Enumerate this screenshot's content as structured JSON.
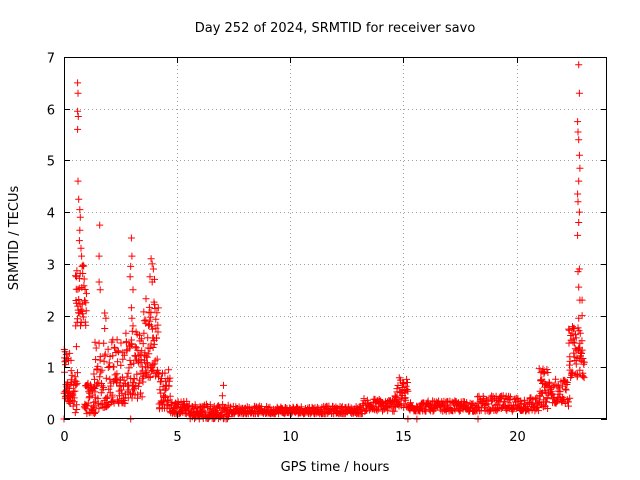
{
  "chart_data": {
    "type": "scatter",
    "title": "Day 252 of 2024, SRMTID for receiver savo",
    "xlabel": "GPS time / hours",
    "ylabel": "SRMTID / TECUs",
    "xlim": [
      0,
      24
    ],
    "ylim": [
      0,
      7
    ],
    "xticks": [
      0,
      5,
      10,
      15,
      20
    ],
    "yticks": [
      0,
      1,
      2,
      3,
      4,
      5,
      6,
      7
    ],
    "grid": true,
    "marker": "+",
    "color": "#ff0000",
    "series": [
      {
        "name": "SRMTID",
        "segments": [
          {
            "x0": 0.0,
            "x1": 0.35,
            "ymin": 0.3,
            "ymax": 1.35,
            "n": 40
          },
          {
            "x0": 0.35,
            "x1": 0.6,
            "ymin": 0.0,
            "ymax": 0.9,
            "n": 20
          },
          {
            "x0": 0.5,
            "x1": 1.0,
            "ymin": 1.8,
            "ymax": 3.0,
            "n": 40
          },
          {
            "x0": 0.9,
            "x1": 1.4,
            "ymin": 0.1,
            "ymax": 0.7,
            "n": 40
          },
          {
            "x0": 1.3,
            "x1": 2.0,
            "ymin": 0.2,
            "ymax": 1.5,
            "n": 50
          },
          {
            "x0": 2.0,
            "x1": 2.7,
            "ymin": 0.3,
            "ymax": 1.6,
            "n": 60
          },
          {
            "x0": 2.7,
            "x1": 3.5,
            "ymin": 0.4,
            "ymax": 1.7,
            "n": 70
          },
          {
            "x0": 3.5,
            "x1": 4.2,
            "ymin": 0.8,
            "ymax": 2.4,
            "n": 70
          },
          {
            "x0": 4.2,
            "x1": 4.7,
            "ymin": 0.2,
            "ymax": 1.0,
            "n": 40
          },
          {
            "x0": 4.7,
            "x1": 5.5,
            "ymin": 0.1,
            "ymax": 0.35,
            "n": 50
          },
          {
            "x0": 5.5,
            "x1": 7.3,
            "ymin": 0.0,
            "ymax": 0.3,
            "n": 110
          },
          {
            "x0": 7.3,
            "x1": 13.2,
            "ymin": 0.1,
            "ymax": 0.25,
            "n": 280
          },
          {
            "x0": 13.2,
            "x1": 14.6,
            "ymin": 0.15,
            "ymax": 0.4,
            "n": 70
          },
          {
            "x0": 14.6,
            "x1": 15.2,
            "ymin": 0.2,
            "ymax": 0.8,
            "n": 45
          },
          {
            "x0": 15.2,
            "x1": 18.2,
            "ymin": 0.15,
            "ymax": 0.35,
            "n": 150
          },
          {
            "x0": 18.2,
            "x1": 21.0,
            "ymin": 0.15,
            "ymax": 0.45,
            "n": 140
          },
          {
            "x0": 21.0,
            "x1": 21.4,
            "ymin": 0.2,
            "ymax": 1.0,
            "n": 35
          },
          {
            "x0": 21.4,
            "x1": 22.3,
            "ymin": 0.3,
            "ymax": 0.8,
            "n": 50
          },
          {
            "x0": 22.3,
            "x1": 23.0,
            "ymin": 0.8,
            "ymax": 1.8,
            "n": 60
          }
        ],
        "points": [
          [
            0.05,
            1.3
          ],
          [
            0.1,
            1.25
          ],
          [
            0.0,
            0.0
          ],
          [
            0.6,
            6.5
          ],
          [
            0.62,
            6.3
          ],
          [
            0.6,
            5.95
          ],
          [
            0.63,
            5.85
          ],
          [
            0.6,
            5.6
          ],
          [
            0.62,
            4.6
          ],
          [
            0.65,
            4.25
          ],
          [
            0.7,
            4.05
          ],
          [
            0.72,
            3.9
          ],
          [
            0.7,
            3.65
          ],
          [
            0.68,
            3.45
          ],
          [
            0.75,
            3.3
          ],
          [
            0.78,
            3.15
          ],
          [
            0.8,
            2.95
          ],
          [
            0.55,
            2.75
          ],
          [
            1.58,
            3.75
          ],
          [
            1.55,
            3.15
          ],
          [
            1.55,
            2.65
          ],
          [
            1.6,
            2.5
          ],
          [
            1.8,
            2.05
          ],
          [
            1.85,
            1.95
          ],
          [
            1.8,
            1.75
          ],
          [
            0.55,
            1.4
          ],
          [
            2.98,
            3.5
          ],
          [
            3.0,
            3.15
          ],
          [
            2.95,
            2.95
          ],
          [
            2.92,
            2.75
          ],
          [
            3.05,
            2.5
          ],
          [
            2.98,
            2.15
          ],
          [
            3.0,
            1.95
          ],
          [
            3.05,
            1.8
          ],
          [
            2.95,
            0.0
          ],
          [
            3.85,
            3.1
          ],
          [
            3.9,
            3.0
          ],
          [
            3.95,
            2.9
          ],
          [
            3.8,
            2.75
          ],
          [
            3.9,
            2.65
          ],
          [
            4.0,
            2.7
          ],
          [
            7.05,
            0.65
          ],
          [
            7.0,
            0.45
          ],
          [
            6.9,
            0.05
          ],
          [
            15.2,
            0.0
          ],
          [
            15.6,
            0.0
          ],
          [
            18.3,
            0.0
          ],
          [
            22.75,
            6.85
          ],
          [
            22.78,
            6.3
          ],
          [
            22.7,
            5.75
          ],
          [
            22.72,
            5.55
          ],
          [
            22.75,
            5.4
          ],
          [
            22.78,
            5.1
          ],
          [
            22.8,
            4.85
          ],
          [
            22.75,
            4.6
          ],
          [
            22.7,
            4.35
          ],
          [
            22.72,
            4.2
          ],
          [
            22.78,
            4.0
          ],
          [
            22.75,
            3.8
          ],
          [
            22.7,
            3.55
          ],
          [
            22.78,
            2.9
          ],
          [
            22.72,
            2.85
          ],
          [
            22.75,
            2.55
          ],
          [
            22.8,
            2.3
          ],
          [
            22.9,
            2.3
          ],
          [
            22.75,
            1.95
          ],
          [
            22.9,
            2.0
          ],
          [
            22.3,
            0.25
          ],
          [
            22.35,
            0.4
          ]
        ]
      }
    ]
  }
}
